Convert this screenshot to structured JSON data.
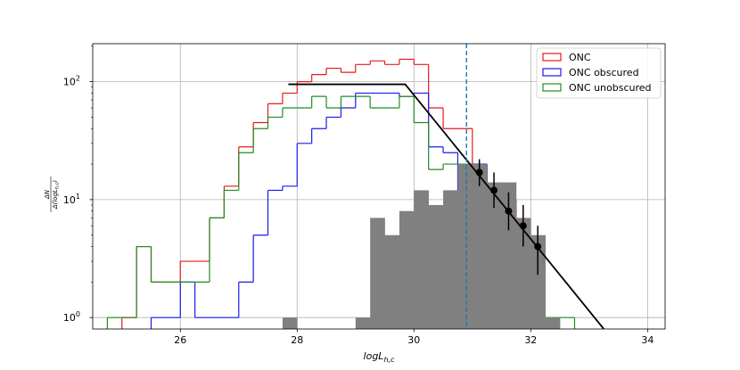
{
  "chart_data": {
    "type": "histogram",
    "xlabel": "logL",
    "xlabel_subscript": "h,c",
    "ylabel": "ΔN / Δ(logL_{h,c})",
    "ylabel_num": "ΔN",
    "ylabel_den_prefix": "Δ(logL",
    "ylabel_den_sub": "h,c",
    "ylabel_den_suffix": ")",
    "xlim": [
      24.5,
      34.3
    ],
    "ylim": [
      0.8,
      210
    ],
    "y_scale": "log",
    "grid": true,
    "legend_position": "upper right",
    "x_ticks": [
      {
        "value": 26,
        "label": "26"
      },
      {
        "value": 28,
        "label": "28"
      },
      {
        "value": 30,
        "label": "30"
      },
      {
        "value": 32,
        "label": "32"
      },
      {
        "value": 34,
        "label": "34"
      }
    ],
    "y_ticks": [
      {
        "value": 1,
        "base": "10",
        "exp": "0"
      },
      {
        "value": 10,
        "base": "10",
        "exp": "1"
      },
      {
        "value": 100,
        "base": "10",
        "exp": "2"
      }
    ],
    "bin_width": 0.25,
    "series": [
      {
        "name": "ONC",
        "color": "#e8191c",
        "style": "step",
        "bins": [
          {
            "x0": 25.0,
            "y": 1
          },
          {
            "x0": 25.25,
            "y": 4
          },
          {
            "x0": 25.5,
            "y": 2
          },
          {
            "x0": 25.75,
            "y": 2
          },
          {
            "x0": 26.0,
            "y": 3
          },
          {
            "x0": 26.25,
            "y": 3
          },
          {
            "x0": 26.5,
            "y": 7
          },
          {
            "x0": 26.75,
            "y": 13
          },
          {
            "x0": 27.0,
            "y": 28
          },
          {
            "x0": 27.25,
            "y": 45
          },
          {
            "x0": 27.5,
            "y": 65
          },
          {
            "x0": 27.75,
            "y": 80
          },
          {
            "x0": 28.0,
            "y": 100
          },
          {
            "x0": 28.25,
            "y": 115
          },
          {
            "x0": 28.5,
            "y": 130
          },
          {
            "x0": 28.75,
            "y": 120
          },
          {
            "x0": 29.0,
            "y": 140
          },
          {
            "x0": 29.25,
            "y": 150
          },
          {
            "x0": 29.5,
            "y": 140
          },
          {
            "x0": 29.75,
            "y": 155
          },
          {
            "x0": 30.0,
            "y": 140
          },
          {
            "x0": 30.25,
            "y": 60
          },
          {
            "x0": 30.5,
            "y": 40
          },
          {
            "x0": 30.75,
            "y": 40
          },
          {
            "x0": 31.0,
            "y": 20
          },
          {
            "x0": 31.25,
            "y": 6
          },
          {
            "x0": 31.5,
            "y": 10
          },
          {
            "x0": 31.75,
            "y": 1
          },
          {
            "x0": 32.0,
            "y": 1
          }
        ]
      },
      {
        "name": "ONC obscured",
        "color": "#1a1aee",
        "style": "step",
        "bins": [
          {
            "x0": 25.5,
            "y": 1
          },
          {
            "x0": 25.75,
            "y": 1
          },
          {
            "x0": 26.0,
            "y": 2
          },
          {
            "x0": 26.25,
            "y": 1
          },
          {
            "x0": 26.5,
            "y": 1
          },
          {
            "x0": 26.75,
            "y": 1
          },
          {
            "x0": 27.0,
            "y": 2
          },
          {
            "x0": 27.25,
            "y": 5
          },
          {
            "x0": 27.5,
            "y": 12
          },
          {
            "x0": 27.75,
            "y": 13
          },
          {
            "x0": 28.0,
            "y": 30
          },
          {
            "x0": 28.25,
            "y": 40
          },
          {
            "x0": 28.5,
            "y": 50
          },
          {
            "x0": 28.75,
            "y": 60
          },
          {
            "x0": 29.0,
            "y": 80
          },
          {
            "x0": 29.25,
            "y": 80
          },
          {
            "x0": 29.5,
            "y": 80
          },
          {
            "x0": 29.75,
            "y": 75
          },
          {
            "x0": 30.0,
            "y": 80
          },
          {
            "x0": 30.25,
            "y": 28
          },
          {
            "x0": 30.5,
            "y": 25
          },
          {
            "x0": 30.75,
            "y": 10
          },
          {
            "x0": 31.0,
            "y": 20
          },
          {
            "x0": 31.25,
            "y": 5
          },
          {
            "x0": 31.5,
            "y": 2
          },
          {
            "x0": 31.75,
            "y": 1
          },
          {
            "x0": 32.0,
            "y": 1
          }
        ]
      },
      {
        "name": "ONC unobscured",
        "color": "#238b23",
        "style": "step",
        "bins": [
          {
            "x0": 24.75,
            "y": 1
          },
          {
            "x0": 25.0,
            "y": 1
          },
          {
            "x0": 25.25,
            "y": 4
          },
          {
            "x0": 25.5,
            "y": 2
          },
          {
            "x0": 25.75,
            "y": 2
          },
          {
            "x0": 26.0,
            "y": 2
          },
          {
            "x0": 26.25,
            "y": 2
          },
          {
            "x0": 26.5,
            "y": 7
          },
          {
            "x0": 26.75,
            "y": 12
          },
          {
            "x0": 27.0,
            "y": 25
          },
          {
            "x0": 27.25,
            "y": 40
          },
          {
            "x0": 27.5,
            "y": 50
          },
          {
            "x0": 27.75,
            "y": 60
          },
          {
            "x0": 28.0,
            "y": 60
          },
          {
            "x0": 28.25,
            "y": 75
          },
          {
            "x0": 28.5,
            "y": 60
          },
          {
            "x0": 28.75,
            "y": 75
          },
          {
            "x0": 29.0,
            "y": 75
          },
          {
            "x0": 29.25,
            "y": 60
          },
          {
            "x0": 29.5,
            "y": 60
          },
          {
            "x0": 29.75,
            "y": 75
          },
          {
            "x0": 30.0,
            "y": 45
          },
          {
            "x0": 30.25,
            "y": 18
          },
          {
            "x0": 30.5,
            "y": 20
          },
          {
            "x0": 30.75,
            "y": 20
          },
          {
            "x0": 31.0,
            "y": 10
          },
          {
            "x0": 31.25,
            "y": 2
          },
          {
            "x0": 31.5,
            "y": 3
          },
          {
            "x0": 31.75,
            "y": 1
          },
          {
            "x0": 32.0,
            "y": 1
          },
          {
            "x0": 32.25,
            "y": 1
          },
          {
            "x0": 32.5,
            "y": 1
          }
        ]
      },
      {
        "name": "",
        "color": "#808080",
        "style": "filled",
        "bins": [
          {
            "x0": 27.75,
            "y": 1
          },
          {
            "x0": 29.0,
            "y": 1
          },
          {
            "x0": 29.25,
            "y": 7
          },
          {
            "x0": 29.5,
            "y": 5
          },
          {
            "x0": 29.75,
            "y": 8
          },
          {
            "x0": 30.0,
            "y": 12
          },
          {
            "x0": 30.25,
            "y": 9
          },
          {
            "x0": 30.5,
            "y": 12
          },
          {
            "x0": 30.75,
            "y": 20
          },
          {
            "x0": 31.0,
            "y": 20
          },
          {
            "x0": 31.25,
            "y": 14
          },
          {
            "x0": 31.5,
            "y": 14
          },
          {
            "x0": 31.75,
            "y": 7
          },
          {
            "x0": 32.0,
            "y": 5
          },
          {
            "x0": 32.25,
            "y": 1
          }
        ]
      }
    ],
    "model_line": {
      "color": "#000000",
      "points": [
        [
          27.85,
          95
        ],
        [
          29.85,
          95
        ],
        [
          33.25,
          0.8
        ]
      ]
    },
    "vertical_line": {
      "x": 30.9,
      "color": "#1f77b4",
      "style": "dashed"
    },
    "error_points": {
      "color": "#000000",
      "points": [
        {
          "x": 31.12,
          "y": 17,
          "lo": 13,
          "hi": 22
        },
        {
          "x": 31.37,
          "y": 12,
          "lo": 8.5,
          "hi": 17
        },
        {
          "x": 31.62,
          "y": 8,
          "lo": 5.5,
          "hi": 11.5
        },
        {
          "x": 31.87,
          "y": 6,
          "lo": 4,
          "hi": 9
        },
        {
          "x": 32.12,
          "y": 4,
          "lo": 2.3,
          "hi": 6
        }
      ]
    }
  }
}
